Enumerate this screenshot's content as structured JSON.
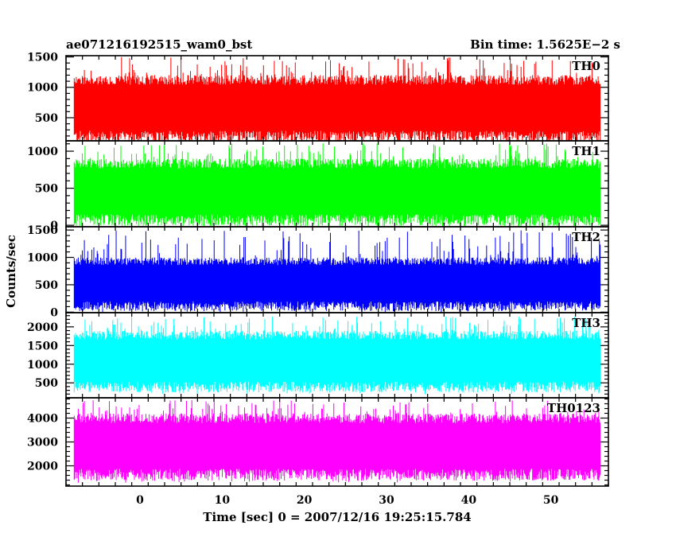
{
  "chart_data": {
    "type": "line",
    "title_left": "ae071216192515_wam0_bst",
    "title_right": "Bin time: 1.5625E−2 s",
    "xlabel": "Time [sec] 0 = 2007/12/16 19:25:15.784",
    "ylabel": "Counts/sec",
    "xlim": [
      -9,
      57
    ],
    "data_x_range": [
      -8,
      56
    ],
    "x_ticks": [
      0,
      10,
      20,
      30,
      40,
      50
    ],
    "grid": false,
    "panels": [
      {
        "name": "TH0",
        "color": "#ff0000",
        "ylim": [
          120,
          1520
        ],
        "y_ticks": [
          500,
          1000,
          1500
        ],
        "signal": {
          "low": 180,
          "high": 1200,
          "peak": 1500
        }
      },
      {
        "name": "TH1",
        "color": "#00ff00",
        "ylim": [
          -20,
          1140
        ],
        "y_ticks": [
          0,
          500,
          1000
        ],
        "signal": {
          "low": 60,
          "high": 900,
          "peak": 1110
        }
      },
      {
        "name": "TH2",
        "color": "#0000ff",
        "ylim": [
          -10,
          1560
        ],
        "y_ticks": [
          0,
          500,
          1000,
          1500
        ],
        "signal": {
          "low": 100,
          "high": 1000,
          "peak": 1500
        }
      },
      {
        "name": "TH3",
        "color": "#00ffff",
        "ylim": [
          100,
          2380
        ],
        "y_ticks": [
          500,
          1000,
          1500,
          2000
        ],
        "signal": {
          "low": 380,
          "high": 1900,
          "peak": 2280
        }
      },
      {
        "name": "TH0123",
        "color": "#ff00ff",
        "ylim": [
          1150,
          4850
        ],
        "y_ticks": [
          2000,
          3000,
          4000
        ],
        "signal": {
          "low": 1600,
          "high": 4200,
          "peak": 4750
        }
      }
    ]
  }
}
